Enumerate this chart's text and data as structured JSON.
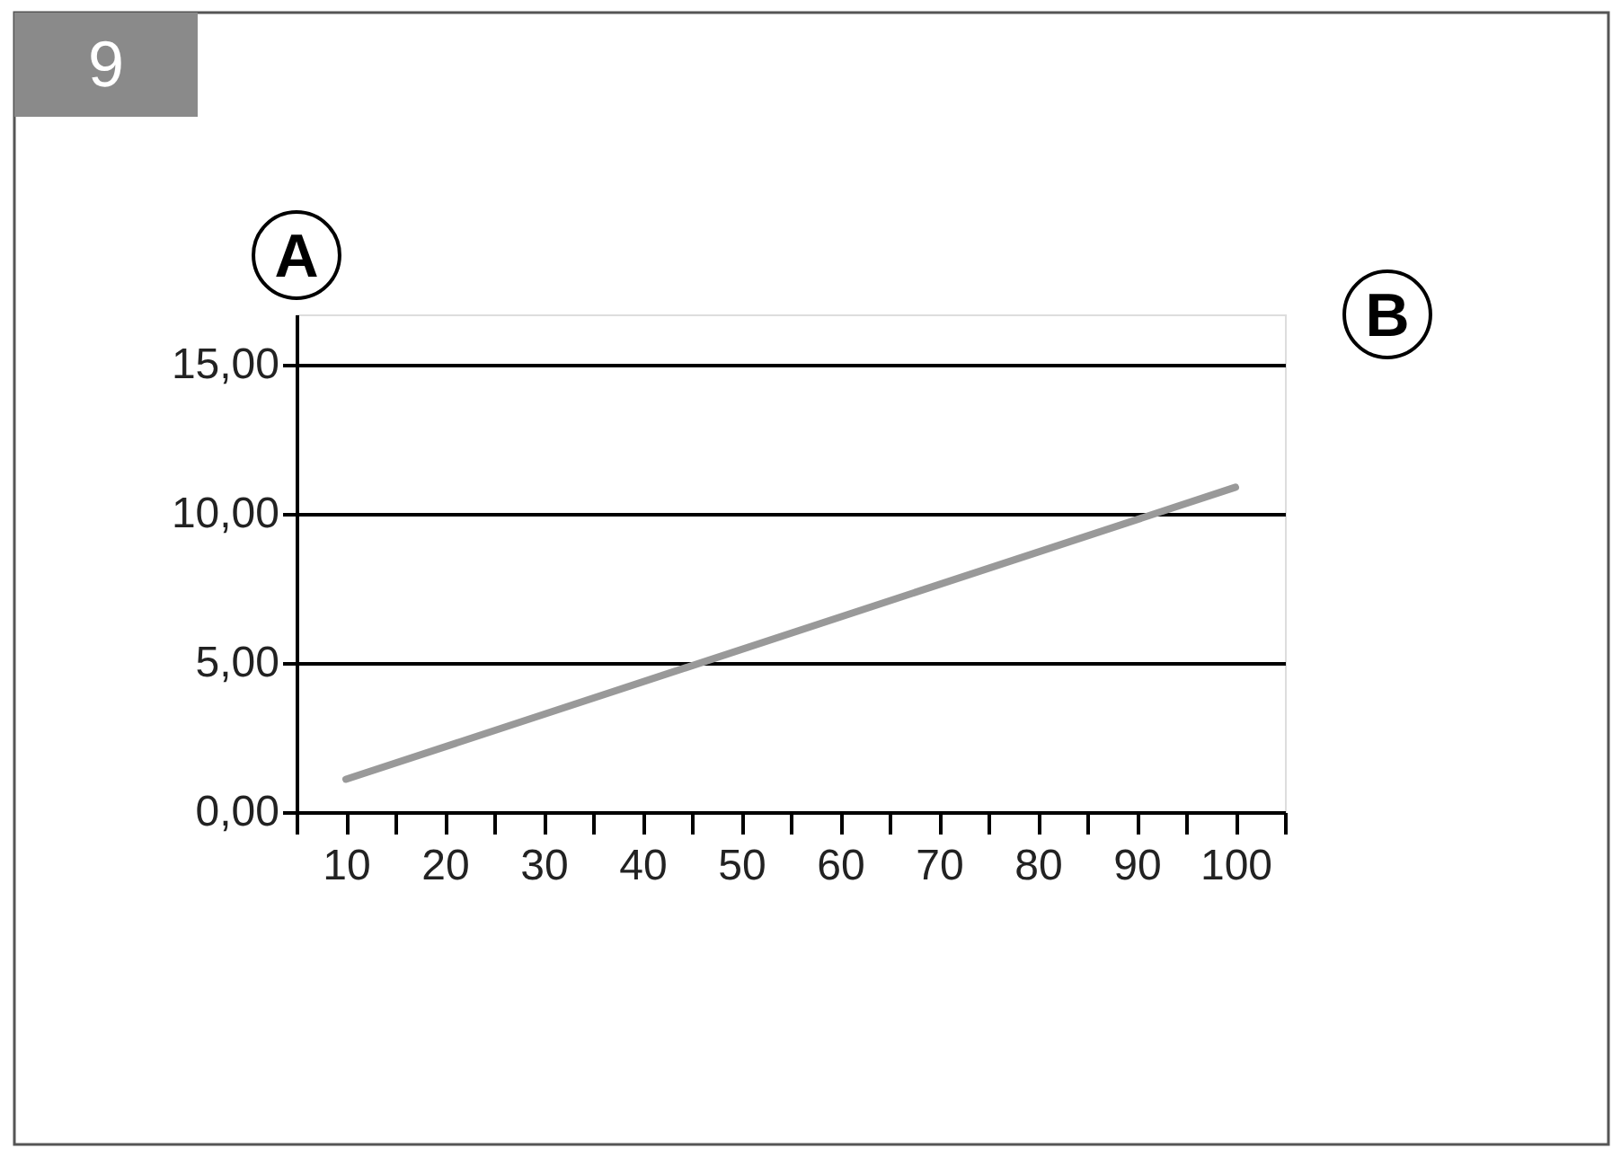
{
  "chart_data": {
    "type": "line",
    "title": "9",
    "xlabel": "B",
    "ylabel": "A",
    "x": [
      10,
      100
    ],
    "series": [
      {
        "color": "#999999",
        "values": [
          1.1,
          10.9
        ]
      }
    ],
    "xlim": [
      5,
      105
    ],
    "xticks": [
      {
        "value": 5,
        "label": null
      },
      10,
      {
        "value": 15,
        "label": null
      },
      20,
      {
        "value": 25,
        "label": null
      },
      30,
      {
        "value": 35,
        "label": null
      },
      40,
      {
        "value": 45,
        "label": null
      },
      50,
      {
        "value": 55,
        "label": null
      },
      60,
      {
        "value": 65,
        "label": null
      },
      70,
      {
        "value": 75,
        "label": null
      },
      80,
      {
        "value": 85,
        "label": null
      },
      90,
      {
        "value": 95,
        "label": null
      },
      100,
      {
        "value": 105,
        "label": null
      }
    ],
    "ylim": [
      0,
      16.7
    ],
    "yticks": [
      {
        "value": 0,
        "label": "0,00"
      },
      {
        "value": 5,
        "label": "5,00"
      },
      {
        "value": 10,
        "label": "10,00"
      },
      {
        "value": 15,
        "label": "15,00"
      }
    ],
    "grid": "y",
    "marker": "none",
    "line_style": "solid"
  }
}
